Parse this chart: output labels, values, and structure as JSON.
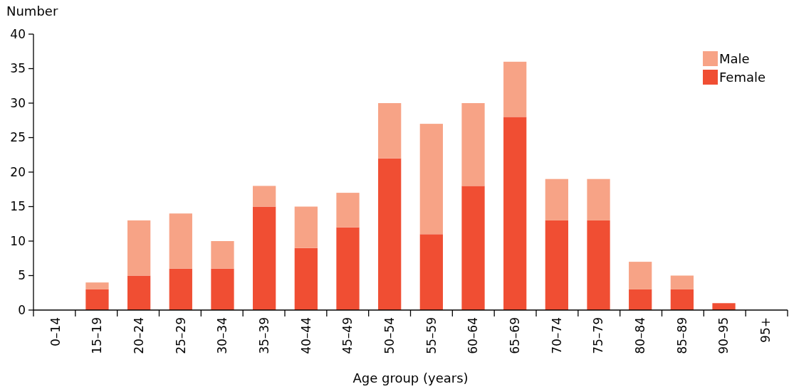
{
  "chart_data": {
    "type": "bar",
    "stacked": true,
    "xlabel": "Age group (years)",
    "ylabel": "Number",
    "categories": [
      "0–14",
      "15–19",
      "20–24",
      "25–29",
      "30–34",
      "35–39",
      "40–44",
      "45–49",
      "50–54",
      "55–59",
      "60–64",
      "65–69",
      "70–74",
      "75–79",
      "80–84",
      "85–89",
      "90–95",
      "95+"
    ],
    "series": [
      {
        "name": "Female",
        "color": "#f04e33",
        "values": [
          0,
          3,
          5,
          6,
          6,
          15,
          9,
          12,
          22,
          11,
          18,
          28,
          13,
          13,
          3,
          3,
          1,
          0
        ]
      },
      {
        "name": "Male",
        "color": "#f7a386",
        "values": [
          0,
          1,
          8,
          8,
          4,
          3,
          6,
          5,
          8,
          16,
          12,
          8,
          6,
          6,
          4,
          2,
          0,
          0
        ]
      }
    ],
    "ylim": [
      0,
      40
    ],
    "yticks": [
      0,
      5,
      10,
      15,
      20,
      25,
      30,
      35,
      40
    ],
    "grid": false,
    "legend": "top right"
  }
}
